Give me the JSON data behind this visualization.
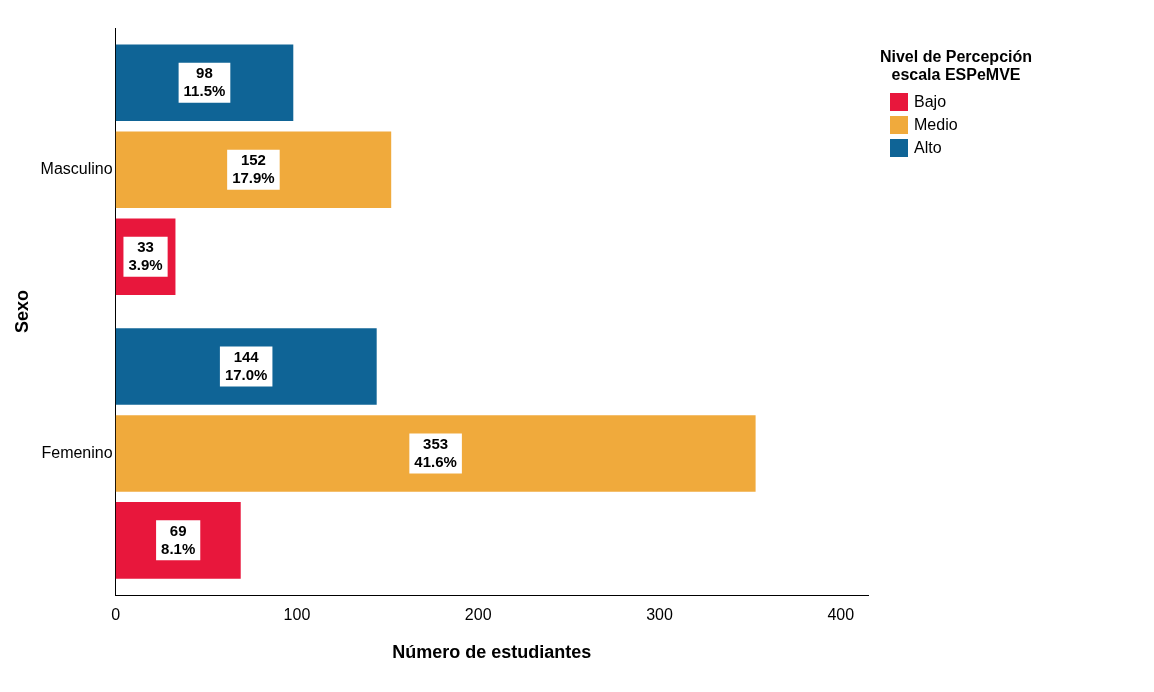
{
  "chart_data": {
    "type": "bar",
    "orientation": "horizontal",
    "categories": [
      "Masculino",
      "Femenino"
    ],
    "xlabel": "Número de estudiantes",
    "ylabel": "Sexo",
    "legend_title": "Nivel de Percepción escala ESPeMVE",
    "xlim": [
      0,
      415
    ],
    "xticks": [
      0,
      100,
      200,
      300,
      400
    ],
    "grid": false,
    "legend": "top right",
    "series": [
      {
        "name": "Alto",
        "color": "#0f6496",
        "values": [
          98,
          144
        ],
        "value_labels": [
          "98\n11.5%",
          "144\n17.0%"
        ]
      },
      {
        "name": "Medio",
        "color": "#f0aa3c",
        "values": [
          152,
          353
        ],
        "value_labels": [
          "152\n17.9%",
          "353\n41.6%"
        ]
      },
      {
        "name": "Bajo",
        "color": "#e8173c",
        "values": [
          33,
          69
        ],
        "value_labels": [
          "33\n3.9%",
          "69\n8.1%"
        ]
      }
    ]
  }
}
